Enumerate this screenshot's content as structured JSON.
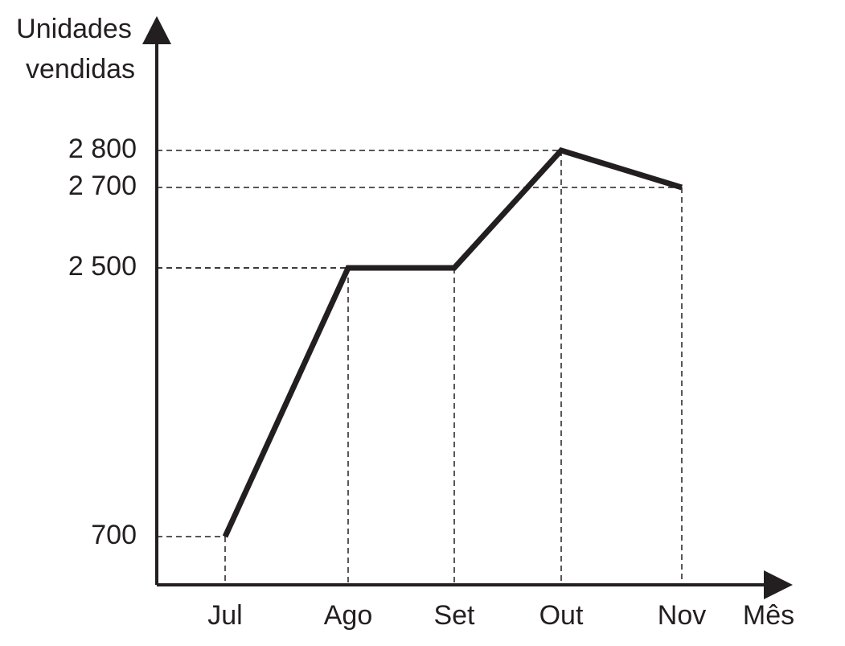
{
  "chart_data": {
    "type": "line",
    "y_label": [
      "Unidades",
      "vendidas"
    ],
    "x_label": "Mês",
    "categories": [
      "Jul",
      "Ago",
      "Set",
      "Out",
      "Nov"
    ],
    "values": [
      700,
      2500,
      2500,
      2800,
      2700
    ],
    "color": "#231f20",
    "yticks": [
      700,
      {
        "value": 2500,
        "label": "2 500"
      },
      {
        "value": 2700,
        "label": "2 700"
      },
      {
        "value": 2800,
        "label": "2 800"
      }
    ],
    "guide_lines": true
  }
}
